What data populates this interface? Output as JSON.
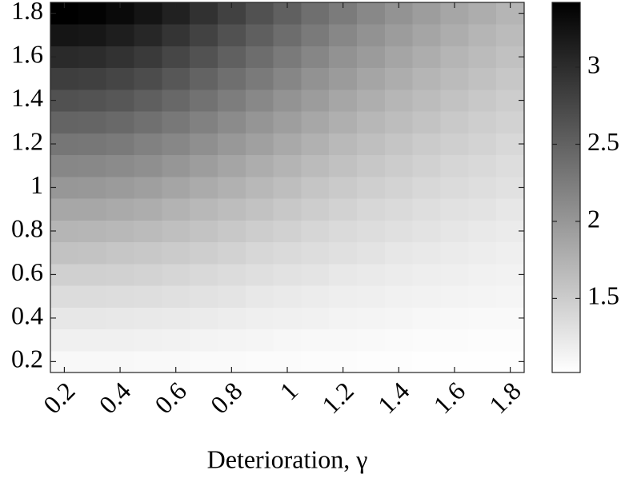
{
  "chart_data": {
    "type": "heatmap",
    "x": [
      0.2,
      0.3,
      0.4,
      0.5,
      0.6,
      0.7,
      0.8,
      0.9,
      1.0,
      1.1,
      1.2,
      1.3,
      1.4,
      1.5,
      1.6,
      1.7,
      1.8
    ],
    "y": [
      0.2,
      0.3,
      0.4,
      0.5,
      0.6,
      0.7,
      0.8,
      0.9,
      1.0,
      1.1,
      1.2,
      1.3,
      1.4,
      1.5,
      1.6,
      1.7,
      1.8
    ],
    "values": [
      [
        1.09,
        1.09,
        1.09,
        1.08,
        1.08,
        1.07,
        1.07,
        1.06,
        1.06,
        1.05,
        1.05,
        1.04,
        1.04,
        1.03,
        1.03,
        1.03,
        1.03
      ],
      [
        1.16,
        1.16,
        1.16,
        1.15,
        1.14,
        1.13,
        1.12,
        1.11,
        1.1,
        1.09,
        1.09,
        1.08,
        1.07,
        1.06,
        1.06,
        1.05,
        1.05
      ],
      [
        1.25,
        1.25,
        1.24,
        1.23,
        1.22,
        1.21,
        1.19,
        1.17,
        1.16,
        1.15,
        1.13,
        1.12,
        1.11,
        1.1,
        1.09,
        1.08,
        1.08
      ],
      [
        1.35,
        1.35,
        1.34,
        1.33,
        1.31,
        1.29,
        1.27,
        1.24,
        1.22,
        1.2,
        1.18,
        1.17,
        1.15,
        1.14,
        1.13,
        1.12,
        1.11
      ],
      [
        1.46,
        1.46,
        1.45,
        1.43,
        1.41,
        1.38,
        1.35,
        1.32,
        1.29,
        1.27,
        1.24,
        1.22,
        1.2,
        1.18,
        1.17,
        1.15,
        1.14
      ],
      [
        1.59,
        1.58,
        1.56,
        1.54,
        1.51,
        1.48,
        1.44,
        1.4,
        1.37,
        1.34,
        1.31,
        1.28,
        1.25,
        1.23,
        1.21,
        1.19,
        1.17
      ],
      [
        1.72,
        1.71,
        1.69,
        1.66,
        1.62,
        1.58,
        1.54,
        1.49,
        1.45,
        1.41,
        1.37,
        1.34,
        1.31,
        1.28,
        1.26,
        1.23,
        1.21
      ],
      [
        1.85,
        1.85,
        1.82,
        1.79,
        1.74,
        1.69,
        1.64,
        1.59,
        1.54,
        1.49,
        1.44,
        1.4,
        1.37,
        1.33,
        1.3,
        1.28,
        1.25
      ],
      [
        2.0,
        1.99,
        1.96,
        1.92,
        1.87,
        1.81,
        1.75,
        1.69,
        1.63,
        1.57,
        1.52,
        1.47,
        1.43,
        1.39,
        1.36,
        1.33,
        1.3
      ],
      [
        2.15,
        2.14,
        2.11,
        2.07,
        2.01,
        1.94,
        1.87,
        1.79,
        1.73,
        1.66,
        1.6,
        1.55,
        1.5,
        1.45,
        1.41,
        1.38,
        1.34
      ],
      [
        2.31,
        2.3,
        2.27,
        2.21,
        2.15,
        2.07,
        1.99,
        1.91,
        1.83,
        1.75,
        1.68,
        1.62,
        1.57,
        1.51,
        1.47,
        1.43,
        1.39
      ],
      [
        2.48,
        2.47,
        2.43,
        2.37,
        2.29,
        2.21,
        2.11,
        2.02,
        1.93,
        1.85,
        1.77,
        1.7,
        1.64,
        1.58,
        1.53,
        1.48,
        1.44
      ],
      [
        2.66,
        2.64,
        2.6,
        2.53,
        2.44,
        2.35,
        2.24,
        2.14,
        2.04,
        1.95,
        1.86,
        1.78,
        1.71,
        1.65,
        1.59,
        1.54,
        1.49
      ],
      [
        2.84,
        2.82,
        2.77,
        2.7,
        2.6,
        2.49,
        2.38,
        2.27,
        2.16,
        2.05,
        1.96,
        1.87,
        1.79,
        1.72,
        1.66,
        1.6,
        1.55
      ],
      [
        3.02,
        3.01,
        2.95,
        2.87,
        2.76,
        2.65,
        2.52,
        2.39,
        2.27,
        2.16,
        2.05,
        1.96,
        1.87,
        1.79,
        1.72,
        1.66,
        1.6
      ],
      [
        3.22,
        3.2,
        3.14,
        3.05,
        2.93,
        2.8,
        2.66,
        2.53,
        2.39,
        2.27,
        2.15,
        2.05,
        1.95,
        1.87,
        1.79,
        1.72,
        1.66
      ],
      [
        3.42,
        3.39,
        3.33,
        3.23,
        3.11,
        2.96,
        2.81,
        2.66,
        2.52,
        2.38,
        2.26,
        2.14,
        2.04,
        1.94,
        1.86,
        1.79,
        1.72
      ]
    ],
    "xlim": [
      0.15,
      1.85
    ],
    "ylim": [
      0.15,
      1.85
    ],
    "xticks": [
      0.2,
      0.4,
      0.6,
      0.8,
      1,
      1.2,
      1.4,
      1.6,
      1.8
    ],
    "yticks": [
      0.2,
      0.4,
      0.6,
      0.8,
      1,
      1.2,
      1.4,
      1.6,
      1.8
    ],
    "xlabel": "Deterioration, γ",
    "colormap": "gray_r",
    "colorbar": {
      "clim": [
        1.02,
        3.42
      ],
      "ticks": [
        1.5,
        2,
        2.5,
        3
      ]
    }
  }
}
